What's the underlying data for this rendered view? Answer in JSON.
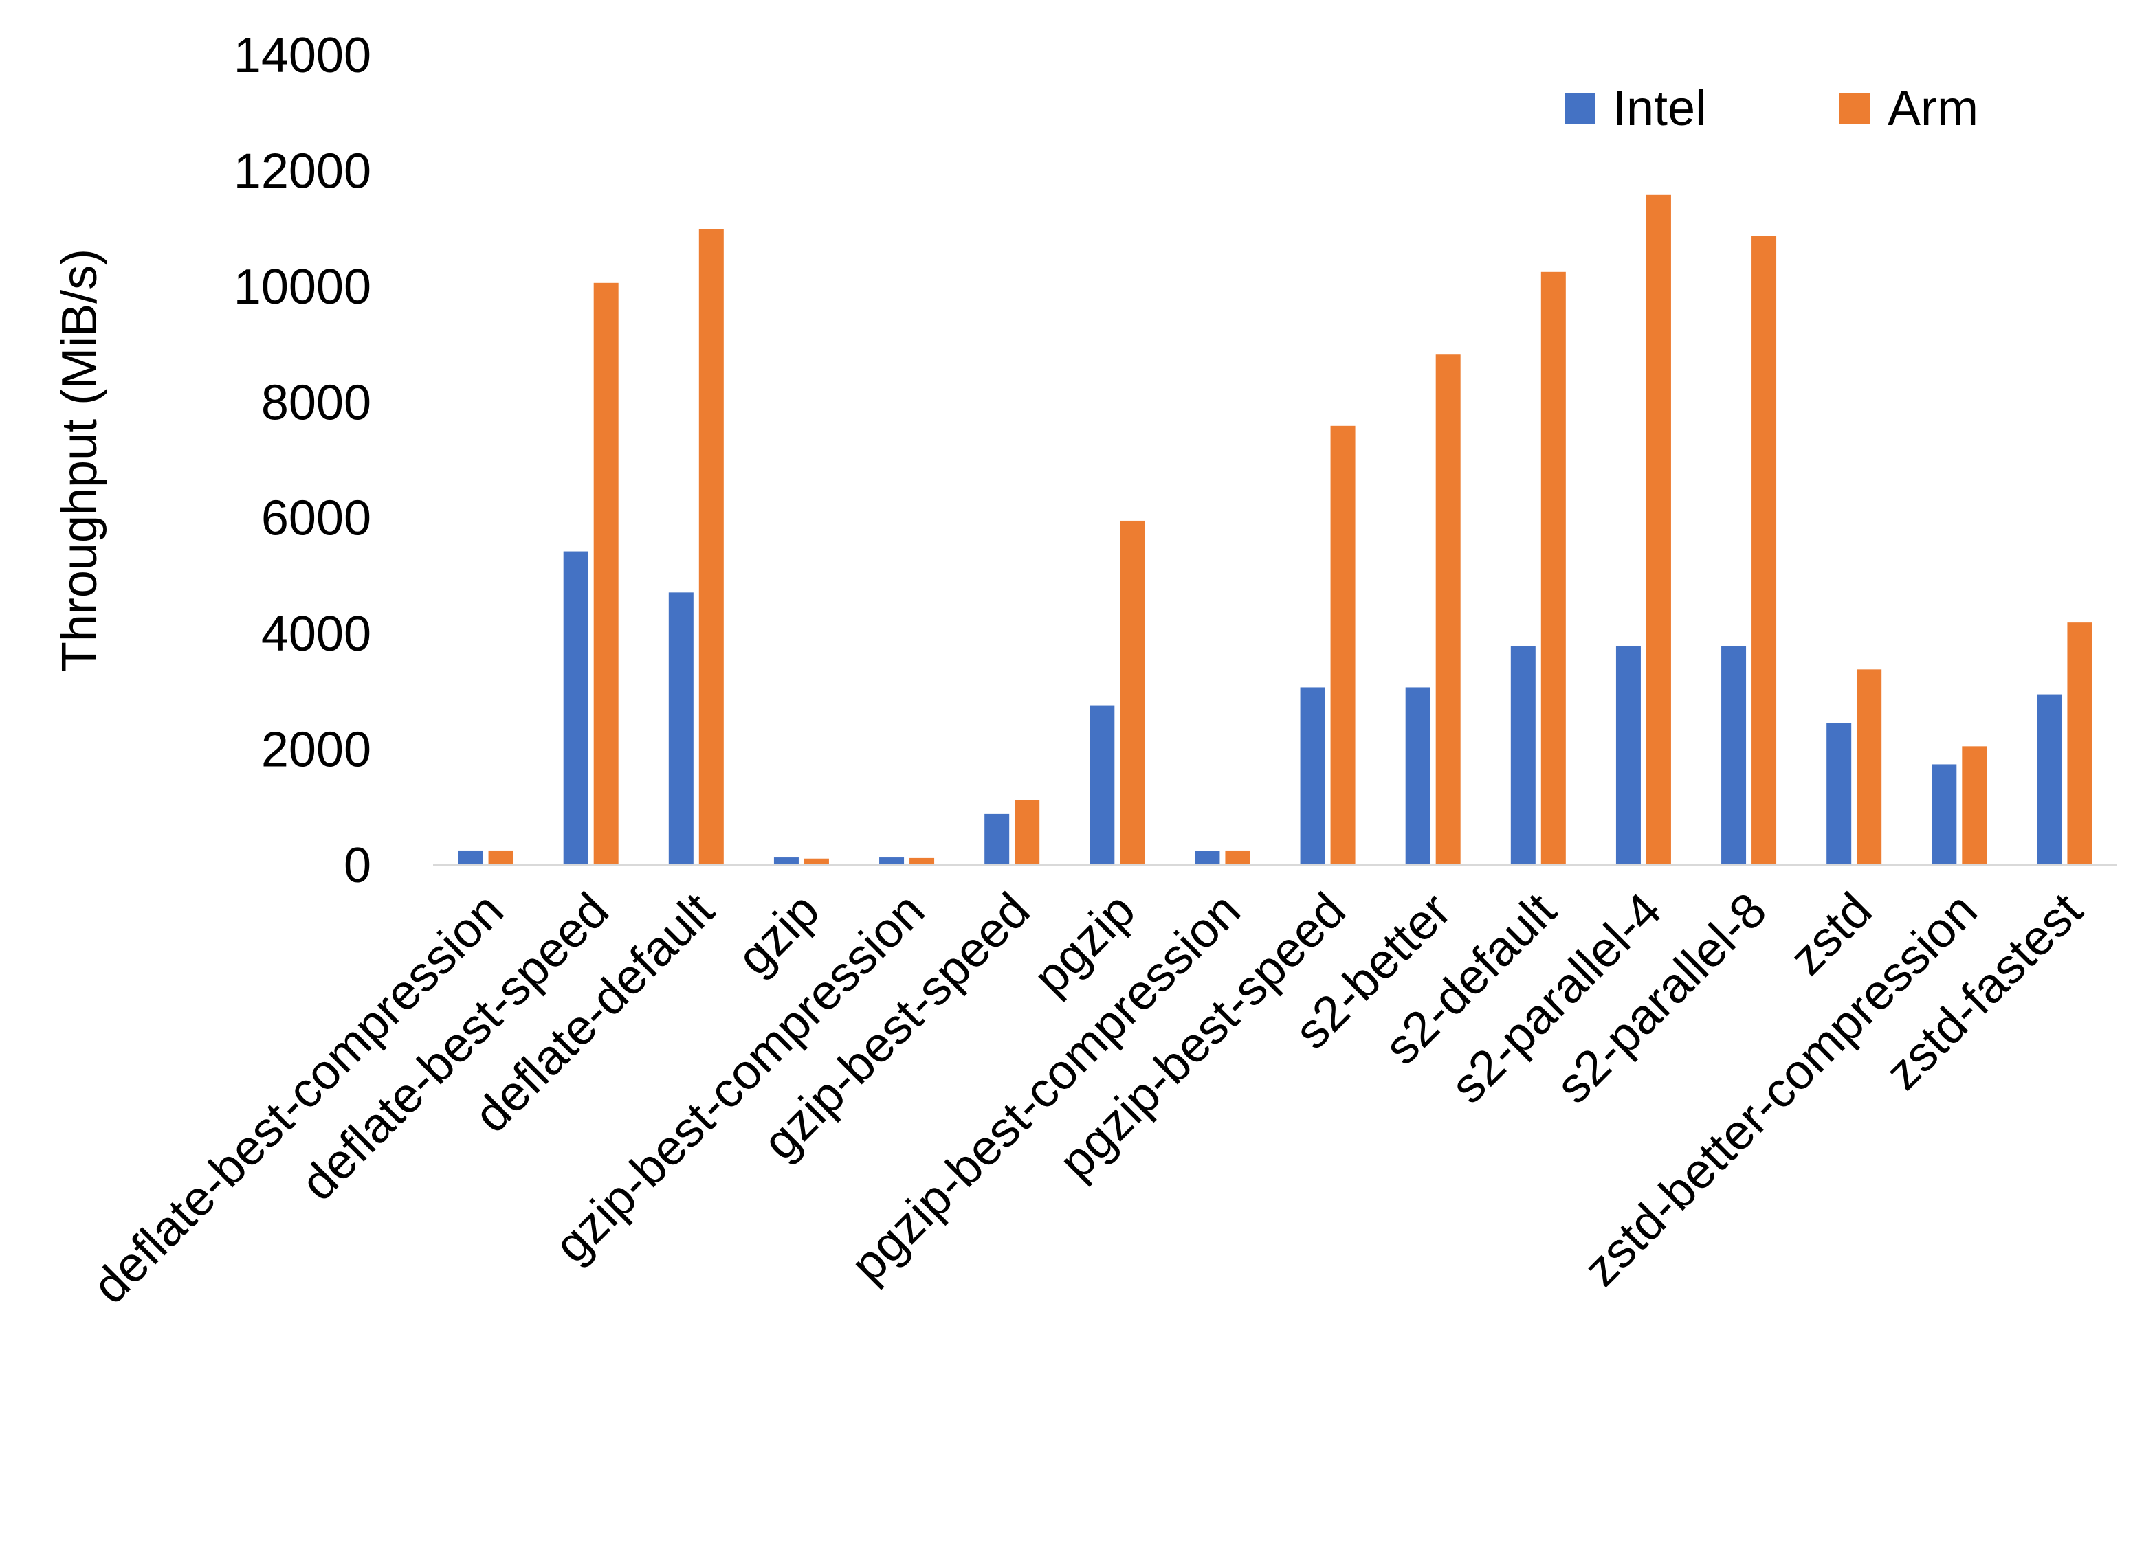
{
  "chart_data": {
    "type": "bar",
    "title": "",
    "xlabel": "",
    "ylabel": "Throughput (MiB/s)",
    "ylim": [
      0,
      14000
    ],
    "yticks": [
      0,
      2000,
      4000,
      6000,
      8000,
      10000,
      12000,
      14000
    ],
    "grid": false,
    "legend_position": "top-right",
    "categories": [
      "deflate-best-compression",
      "deflate-best-speed",
      "deflate-default",
      "gzip",
      "gzip-best-compression",
      "gzip-best-speed",
      "pgzip",
      "pgzip-best-compression",
      "pgzip-best-speed",
      "s2-better",
      "s2-default",
      "s2-parallel-4",
      "s2-parallel-8",
      "zstd",
      "zstd-better-compression",
      "zstd-fastest"
    ],
    "series": [
      {
        "name": "Intel",
        "color": "#4472C4",
        "values": [
          250,
          5420,
          4710,
          130,
          130,
          880,
          2760,
          240,
          3070,
          3070,
          3780,
          3780,
          3780,
          2450,
          1740,
          2950
        ]
      },
      {
        "name": "Arm",
        "color": "#ED7D31",
        "values": [
          250,
          10060,
          10990,
          110,
          120,
          1120,
          5950,
          250,
          7590,
          8820,
          10250,
          11580,
          10870,
          3380,
          2050,
          4190
        ]
      }
    ]
  }
}
